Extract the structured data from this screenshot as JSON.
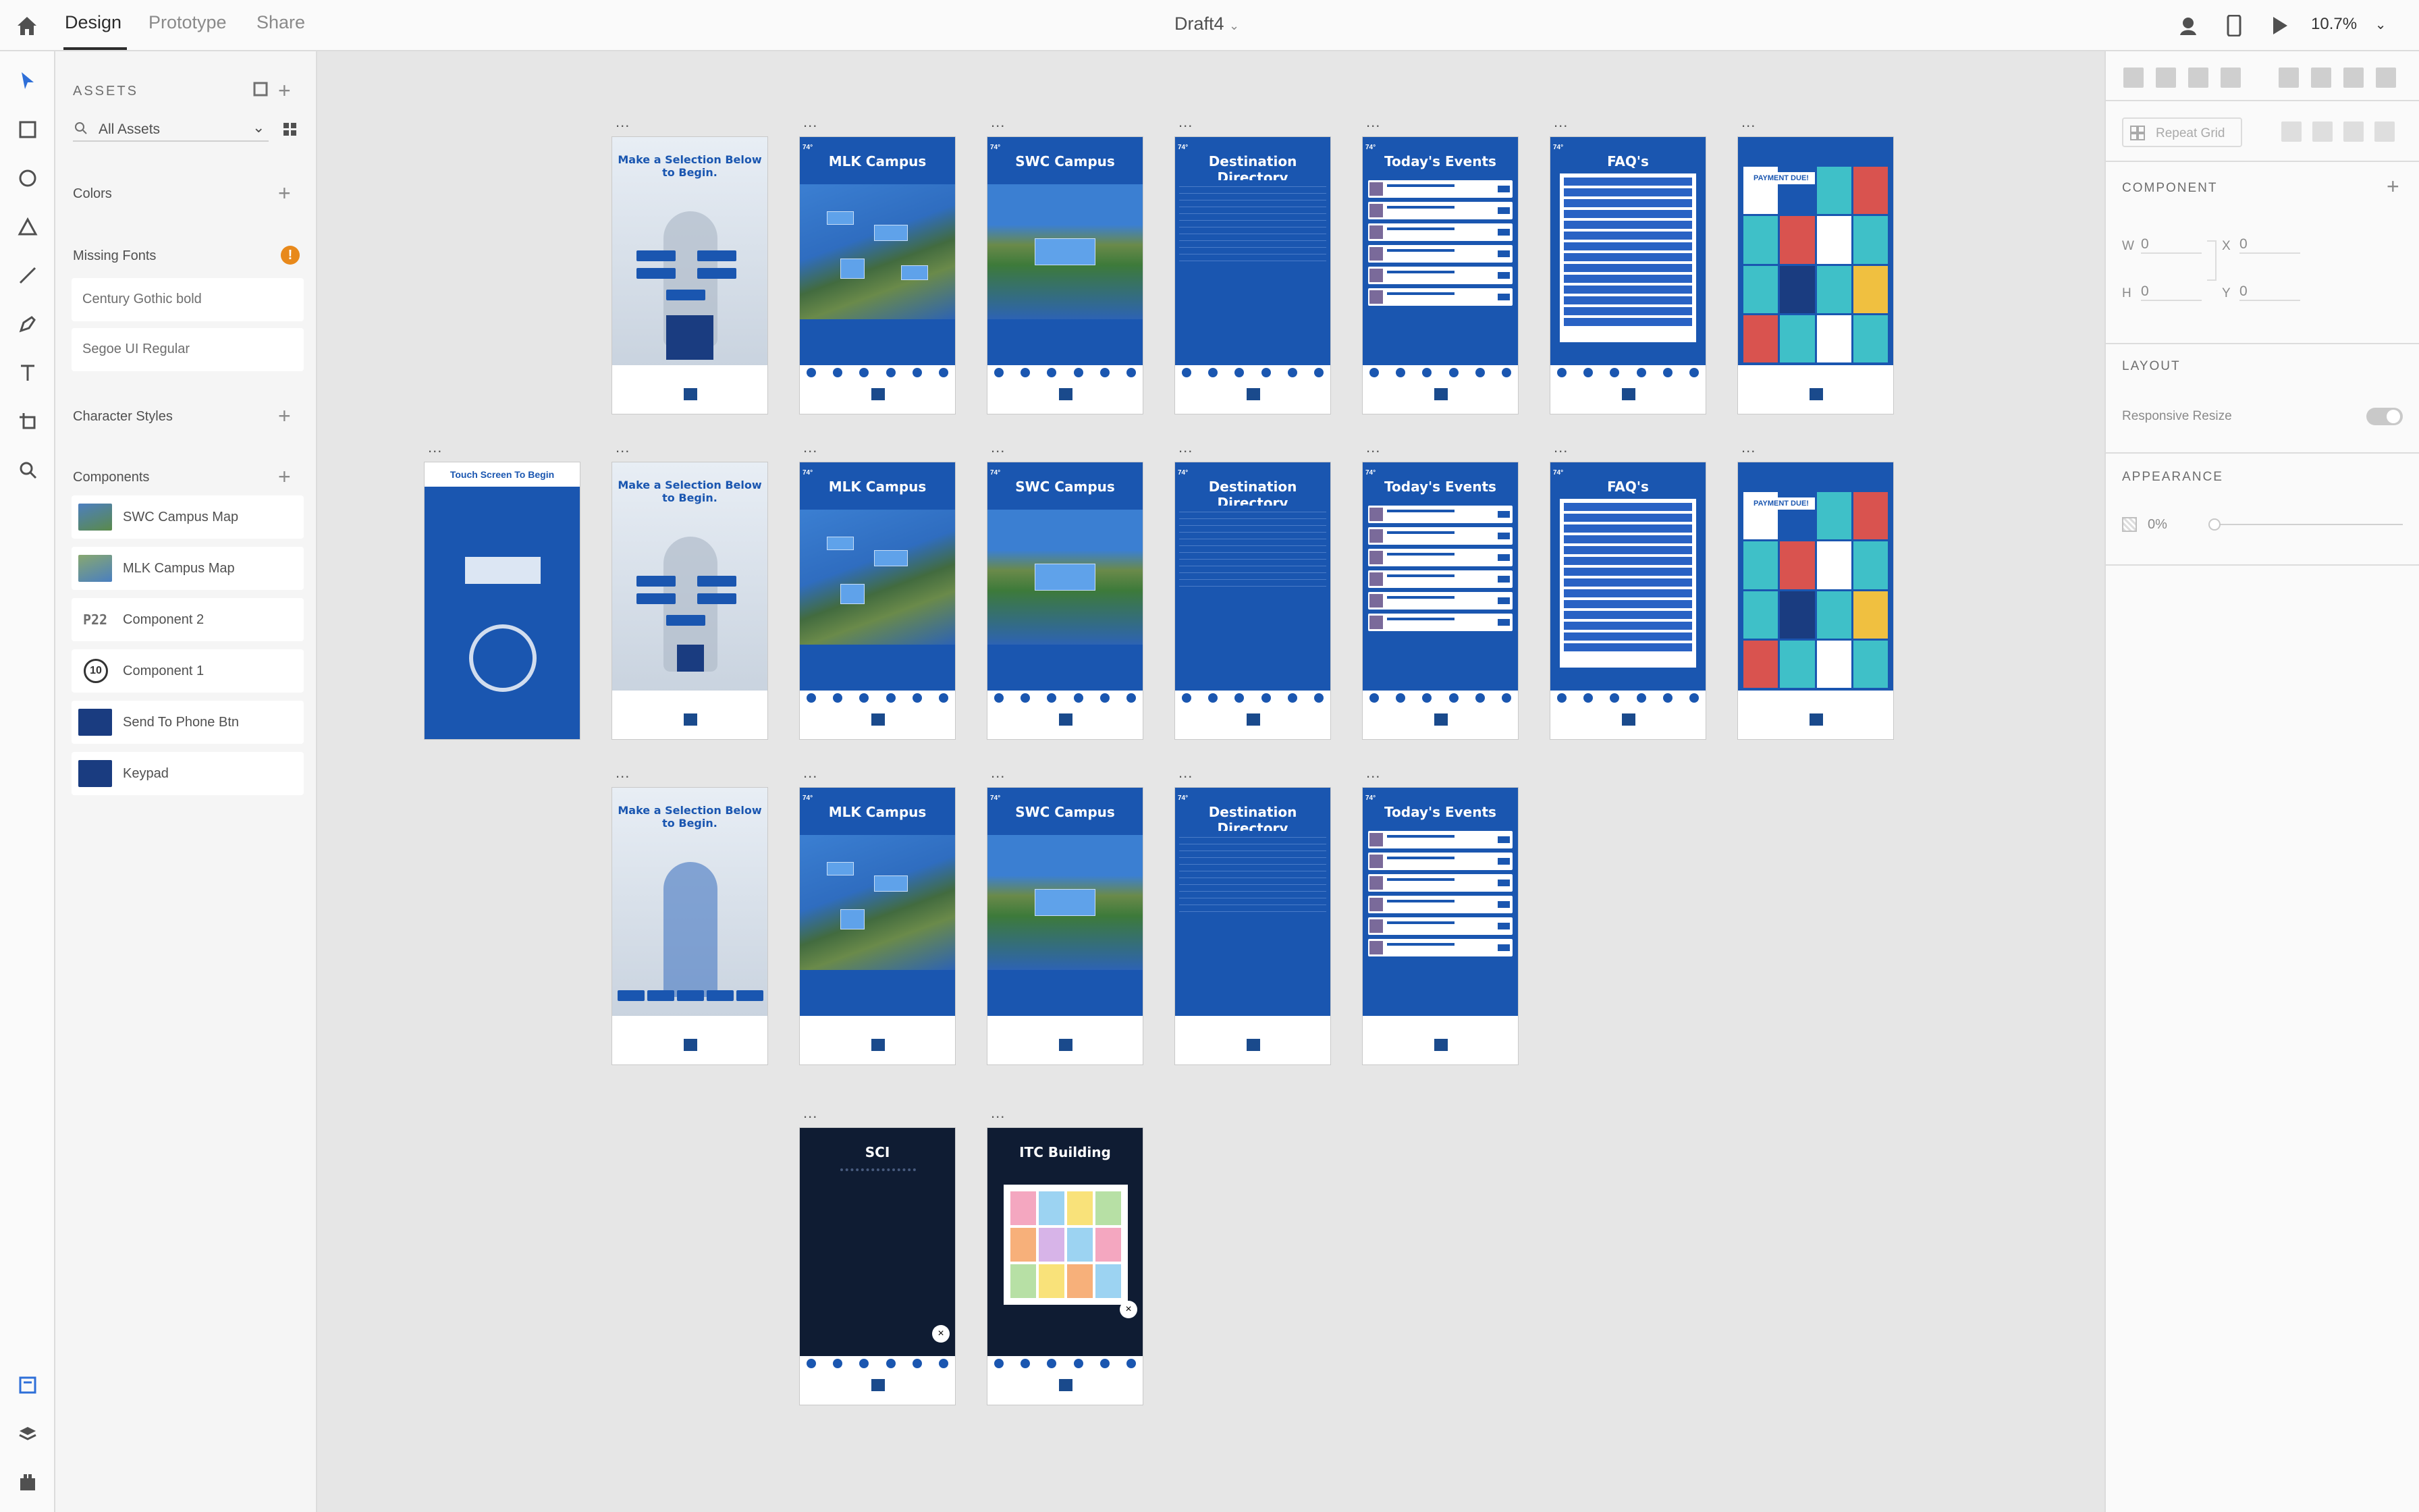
{
  "topbar": {
    "tabs": [
      "Design",
      "Prototype",
      "Share"
    ],
    "document_title": "Draft4",
    "zoom": "10.7%"
  },
  "assets": {
    "heading": "ASSETS",
    "filter": "All Assets",
    "colors_label": "Colors",
    "missing_fonts_label": "Missing Fonts",
    "missing_fonts": [
      "Century Gothic bold",
      "Segoe UI Regular"
    ],
    "character_styles_label": "Character Styles",
    "components_label": "Components",
    "components": [
      "SWC Campus Map",
      "MLK Campus Map",
      "Component 2",
      "Component 1",
      "Send To Phone Btn",
      "Keypad"
    ],
    "component_badges": [
      "P22",
      "10"
    ]
  },
  "artboards": {
    "dots": "...",
    "welcome": "Make a Selection Below to Begin.",
    "mlk": "MLK Campus",
    "swc": "SWC Campus",
    "directory": "Destination Directory",
    "events": "Today's Events",
    "faq": "FAQ's",
    "payment": "PAYMENT DUE!",
    "touch": "Touch Screen To Begin",
    "sci": "SCI",
    "itc": "ITC Building",
    "temp": "74°"
  },
  "right_panel": {
    "repeat_grid": "Repeat Grid",
    "component": "COMPONENT",
    "w_label": "W",
    "w_val": "0",
    "x_label": "X",
    "x_val": "0",
    "h_label": "H",
    "h_val": "0",
    "y_label": "Y",
    "y_val": "0",
    "layout": "LAYOUT",
    "responsive_resize": "Responsive Resize",
    "appearance": "APPEARANCE",
    "opacity": "0%"
  },
  "colors": {
    "accent": "#1a56b0",
    "warning": "#e8891b"
  }
}
